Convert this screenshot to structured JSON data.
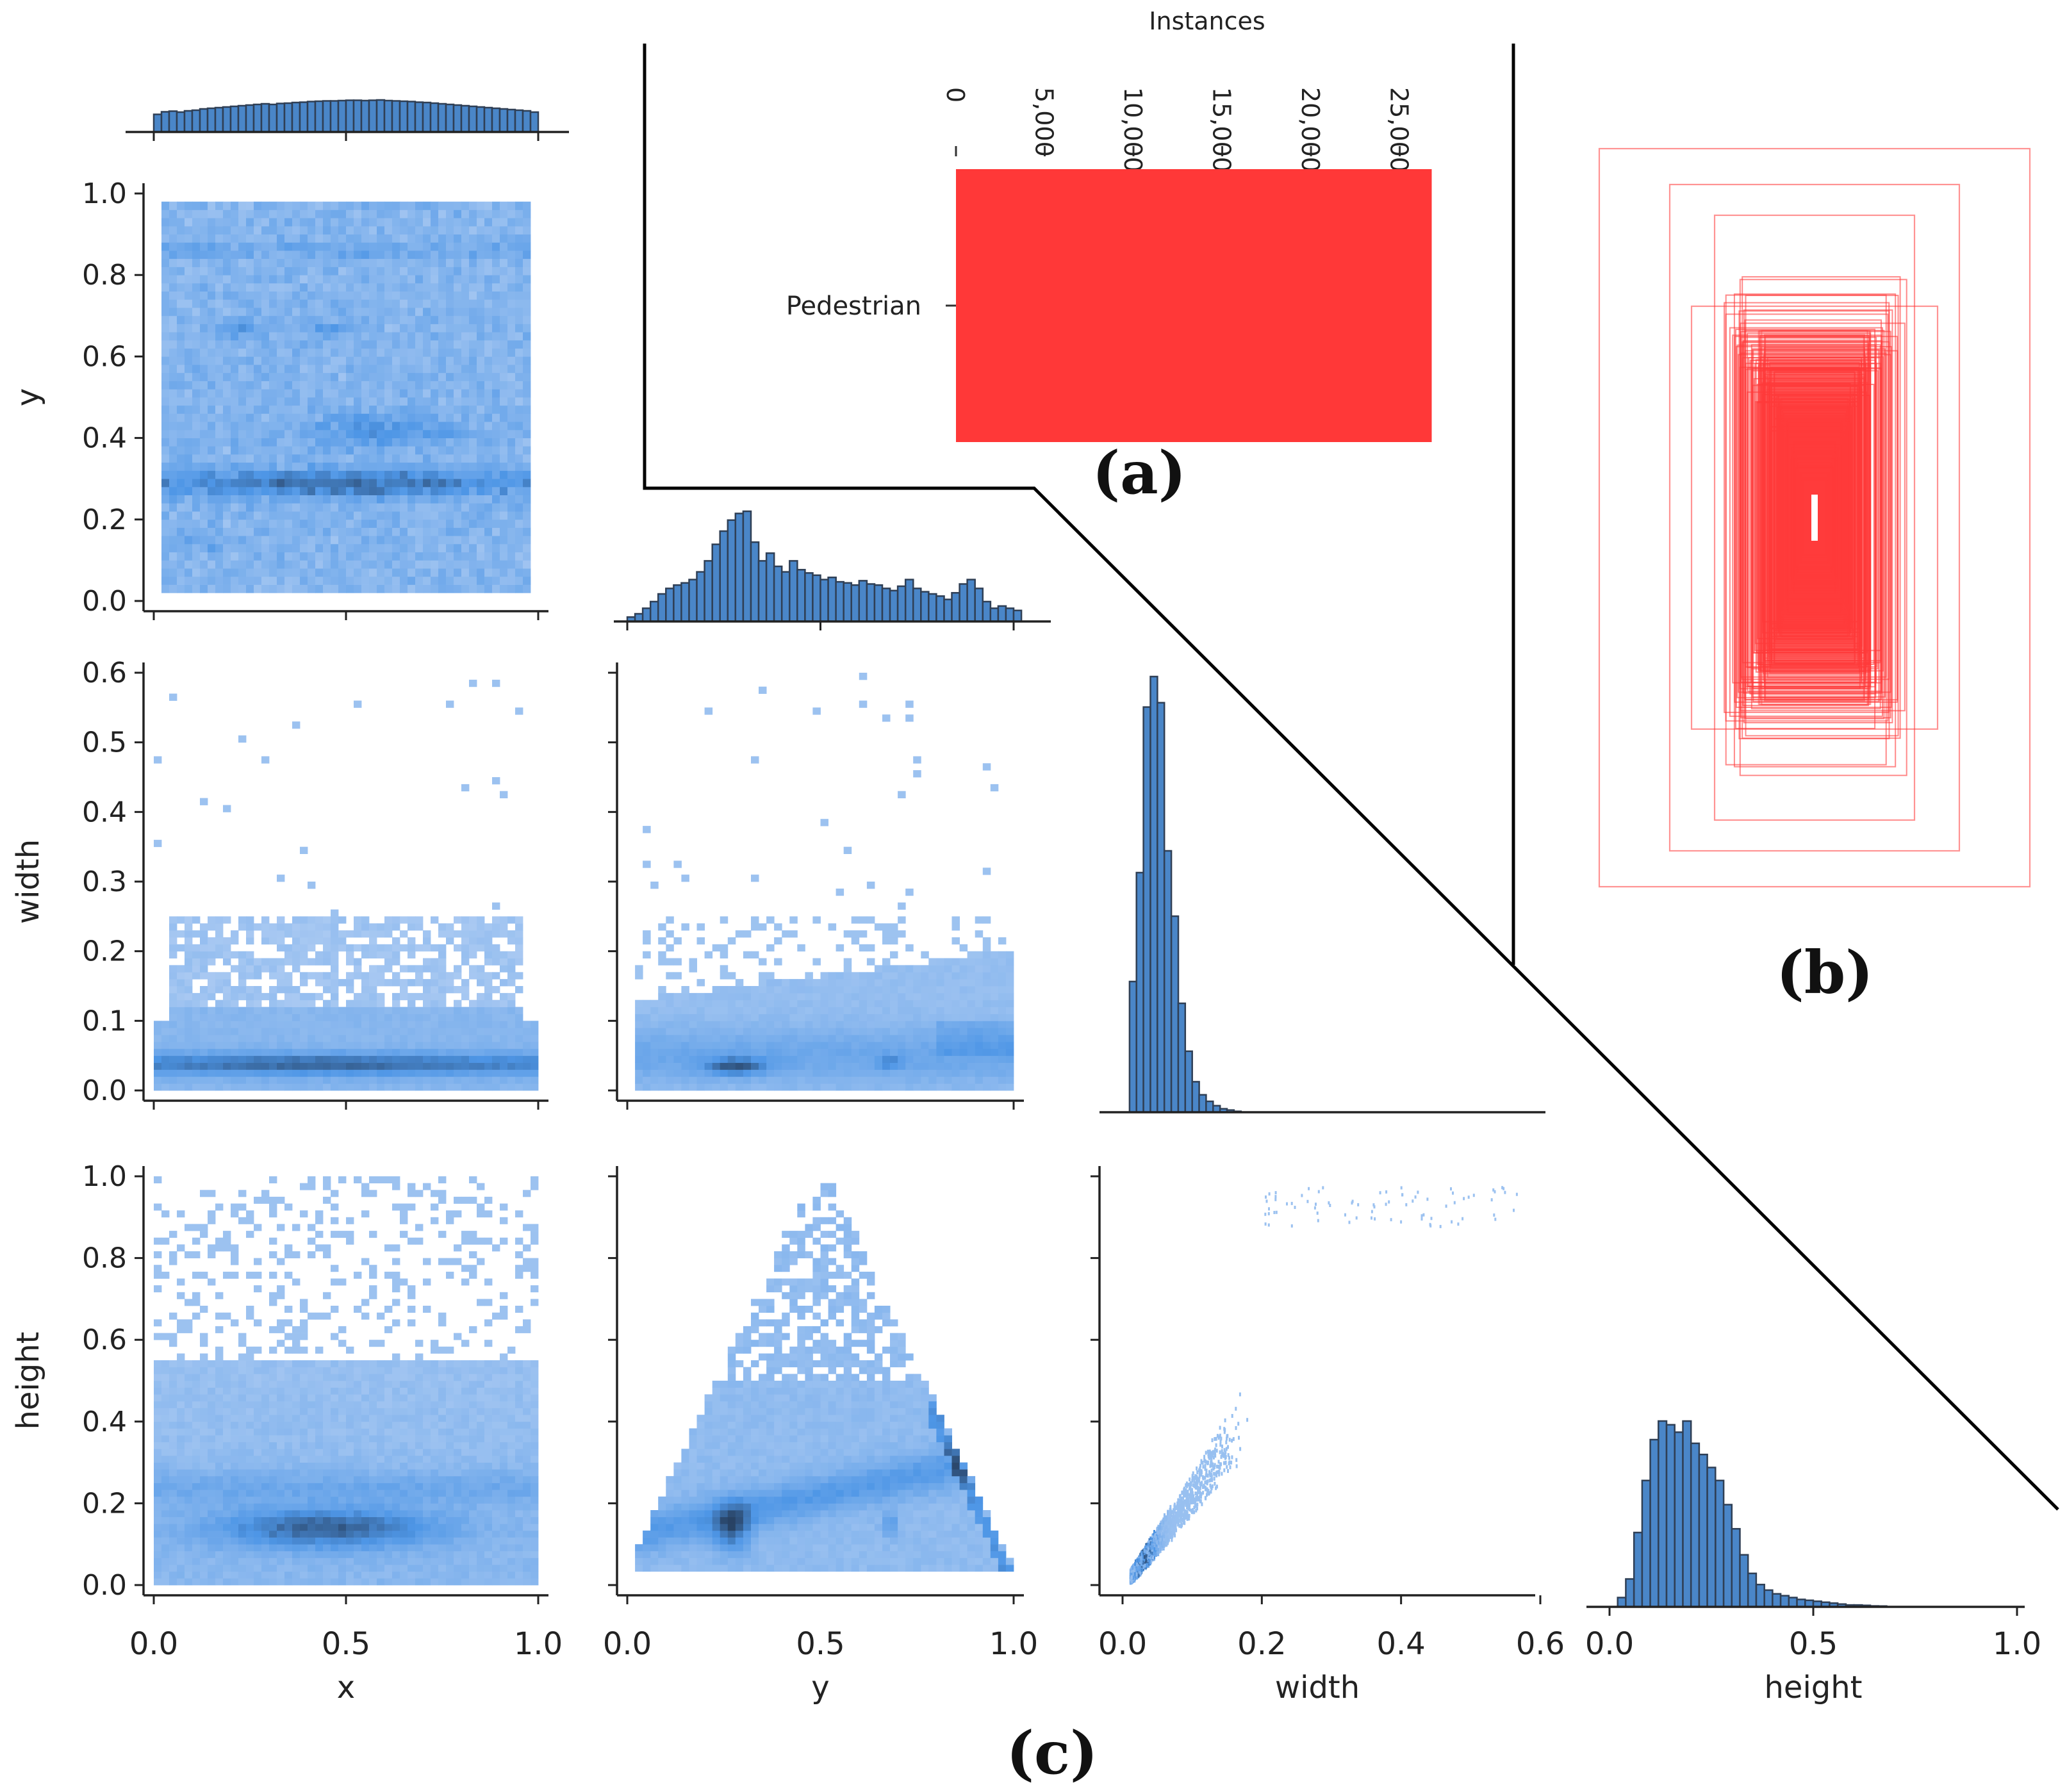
{
  "figure": {
    "panel_labels": {
      "a": "(a)",
      "b": "(b)",
      "c": "(c)"
    },
    "colors": {
      "bar": "#ff3838",
      "hist_fill": "#4a86c8",
      "hist_edge": "#2f3f55",
      "density_light": "#a9c9f2",
      "density_dark": "#263d5c",
      "box_stroke": "#ff3a3a",
      "connector": "#000000"
    }
  },
  "chart_data": [
    {
      "id": "a",
      "type": "bar",
      "orientation": "horizontal",
      "title": "Instances",
      "categories": [
        "Pedestrian"
      ],
      "values": [
        26800
      ],
      "xlim": [
        0,
        27000
      ],
      "ticks": [
        0,
        5000,
        10000,
        15000,
        20000,
        25000
      ],
      "tick_labels": [
        "0",
        "5,000",
        "10,000",
        "15,000",
        "20,000",
        "25,000"
      ]
    },
    {
      "id": "b",
      "type": "box-overlay",
      "description_label": "(b)",
      "box_count": 60
    },
    {
      "id": "c",
      "type": "heatmap",
      "layout": "pair-grid",
      "variables": [
        "x",
        "y",
        "width",
        "height"
      ],
      "axes": {
        "x": {
          "label": "x",
          "range": [
            0,
            1
          ],
          "ticks": [
            0.0,
            0.5,
            1.0
          ],
          "tick_labels": [
            "0.0",
            "0.5",
            "1.0"
          ]
        },
        "y": {
          "label": "y",
          "range": [
            0,
            1
          ],
          "ticks": [
            0.0,
            0.2,
            0.4,
            0.6,
            0.8,
            1.0
          ],
          "tick_labels": [
            "0.0",
            "0.2",
            "0.4",
            "0.6",
            "0.8",
            "1.0"
          ]
        },
        "width": {
          "label": "width",
          "range": [
            0,
            0.6
          ],
          "ticks": [
            0.0,
            0.1,
            0.2,
            0.3,
            0.4,
            0.5,
            0.6
          ],
          "tick_labels": [
            "0.0",
            "0.1",
            "0.2",
            "0.3",
            "0.4",
            "0.5",
            "0.6"
          ],
          "bottom_ticks": [
            0.0,
            0.2,
            0.4,
            0.6
          ],
          "bottom_tick_labels": [
            "0.0",
            "0.2",
            "0.4",
            "0.6"
          ]
        },
        "height": {
          "label": "height",
          "range": [
            0,
            1
          ],
          "ticks": [
            0.0,
            0.2,
            0.4,
            0.6,
            0.8,
            1.0
          ],
          "tick_labels": [
            "0.0",
            "0.2",
            "0.4",
            "0.6",
            "0.8",
            "1.0"
          ],
          "bottom_ticks": [
            0.0,
            0.5,
            1.0
          ],
          "bottom_tick_labels": [
            "0.0",
            "0.5",
            "1.0"
          ]
        }
      },
      "histograms": {
        "x": {
          "bin_width": 0.02,
          "counts": [
            0.55,
            0.63,
            0.65,
            0.62,
            0.66,
            0.68,
            0.72,
            0.74,
            0.76,
            0.78,
            0.8,
            0.82,
            0.84,
            0.86,
            0.88,
            0.86,
            0.89,
            0.9,
            0.92,
            0.93,
            0.95,
            0.96,
            0.97,
            0.97,
            0.98,
            0.99,
            0.99,
            0.98,
            0.99,
            1.0,
            0.98,
            0.97,
            0.96,
            0.95,
            0.93,
            0.92,
            0.9,
            0.88,
            0.86,
            0.84,
            0.82,
            0.8,
            0.78,
            0.76,
            0.74,
            0.72,
            0.7,
            0.68,
            0.66,
            0.62
          ]
        },
        "y": {
          "bin_width": 0.02,
          "counts": [
            0.04,
            0.07,
            0.12,
            0.18,
            0.25,
            0.3,
            0.33,
            0.35,
            0.38,
            0.45,
            0.55,
            0.7,
            0.82,
            0.92,
            0.98,
            1.0,
            0.72,
            0.55,
            0.62,
            0.5,
            0.45,
            0.55,
            0.47,
            0.44,
            0.42,
            0.38,
            0.4,
            0.36,
            0.35,
            0.33,
            0.37,
            0.34,
            0.33,
            0.3,
            0.28,
            0.32,
            0.38,
            0.3,
            0.27,
            0.25,
            0.23,
            0.2,
            0.26,
            0.34,
            0.38,
            0.3,
            0.18,
            0.12,
            0.14,
            0.12,
            0.1
          ]
        },
        "width": {
          "bin_width": 0.01,
          "counts": [
            0.0,
            0.3,
            0.55,
            0.93,
            1.0,
            0.94,
            0.6,
            0.45,
            0.25,
            0.14,
            0.07,
            0.04,
            0.025,
            0.015,
            0.008,
            0.005,
            0.002
          ]
        },
        "height": {
          "bin_width": 0.02,
          "counts": [
            0.0,
            0.05,
            0.15,
            0.4,
            0.68,
            0.9,
            1.0,
            0.98,
            0.94,
            1.0,
            0.88,
            0.82,
            0.75,
            0.68,
            0.55,
            0.42,
            0.28,
            0.18,
            0.12,
            0.09,
            0.07,
            0.06,
            0.05,
            0.04,
            0.035,
            0.03,
            0.025,
            0.02,
            0.015,
            0.01,
            0.01,
            0.008,
            0.005,
            0.004
          ]
        }
      }
    }
  ]
}
